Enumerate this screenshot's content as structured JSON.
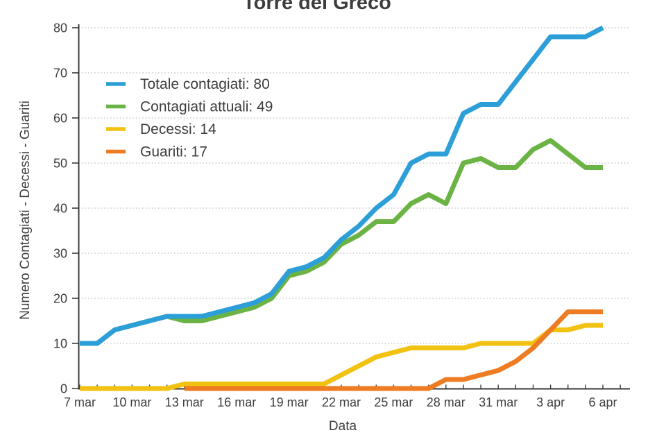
{
  "title": "Torre del Greco",
  "xlabel": "Data",
  "ylabel": "Numero Contagiati - Decessi - Guariti",
  "colors": {
    "totale": "#2D9FD8",
    "attuali": "#6CB345",
    "decessi": "#F2C213",
    "guariti": "#EE7C23",
    "grid": "#C9C9C9",
    "axis": "#3A3A3A",
    "text": "#3E3E3E"
  },
  "chart_data": {
    "type": "line",
    "title": "Torre del Greco",
    "xlabel": "Data",
    "ylabel": "Numero Contagiati - Decessi - Guariti",
    "ylim": [
      0,
      80
    ],
    "yticks": [
      0,
      10,
      20,
      30,
      40,
      50,
      60,
      70,
      80
    ],
    "grid": "horizontal-dotted",
    "legend_position": "upper-left-inside",
    "x": [
      "7 mar",
      "8 mar",
      "9 mar",
      "10 mar",
      "11 mar",
      "12 mar",
      "13 mar",
      "14 mar",
      "15 mar",
      "16 mar",
      "17 mar",
      "18 mar",
      "19 mar",
      "20 mar",
      "21 mar",
      "22 mar",
      "23 mar",
      "24 mar",
      "25 mar",
      "26 mar",
      "27 mar",
      "28 mar",
      "29 mar",
      "30 mar",
      "31 mar",
      "1 apr",
      "2 apr",
      "3 apr",
      "4 apr",
      "5 apr",
      "6 apr"
    ],
    "xtick_labels": [
      "7 mar",
      "10 mar",
      "13 mar",
      "16 mar",
      "19 mar",
      "22 mar",
      "25 mar",
      "28 mar",
      "31 mar",
      "3 apr",
      "6 apr"
    ],
    "series": [
      {
        "name": "Totale contagiati",
        "legend_label": "Totale contagiati: 80",
        "color": "#2D9FD8",
        "final_value": 80,
        "values": [
          10,
          10,
          13,
          14,
          15,
          16,
          16,
          16,
          17,
          18,
          19,
          21,
          26,
          27,
          29,
          33,
          36,
          40,
          43,
          50,
          52,
          52,
          61,
          63,
          63,
          68,
          73,
          78,
          78,
          78,
          80
        ]
      },
      {
        "name": "Contagiati attuali",
        "legend_label": "Contagiati attuali: 49",
        "color": "#6CB345",
        "final_value": 49,
        "values": [
          10,
          10,
          13,
          14,
          15,
          16,
          15,
          15,
          16,
          17,
          18,
          20,
          25,
          26,
          28,
          32,
          34,
          37,
          37,
          41,
          43,
          41,
          50,
          51,
          49,
          49,
          53,
          55,
          52,
          49,
          49
        ]
      },
      {
        "name": "Decessi",
        "legend_label": "Decessi: 14",
        "color": "#F2C213",
        "final_value": 14,
        "values": [
          0,
          0,
          0,
          0,
          0,
          0,
          1,
          1,
          1,
          1,
          1,
          1,
          1,
          1,
          1,
          3,
          5,
          7,
          8,
          9,
          9,
          9,
          9,
          10,
          10,
          10,
          10,
          13,
          13,
          14,
          14
        ]
      },
      {
        "name": "Guariti",
        "legend_label": "Guariti: 17",
        "color": "#EE7C23",
        "final_value": 17,
        "values": [
          null,
          null,
          null,
          null,
          null,
          null,
          0,
          0,
          0,
          0,
          0,
          0,
          0,
          0,
          0,
          0,
          0,
          0,
          0,
          0,
          0,
          2,
          2,
          3,
          4,
          6,
          9,
          13,
          17,
          17,
          17
        ]
      }
    ]
  }
}
